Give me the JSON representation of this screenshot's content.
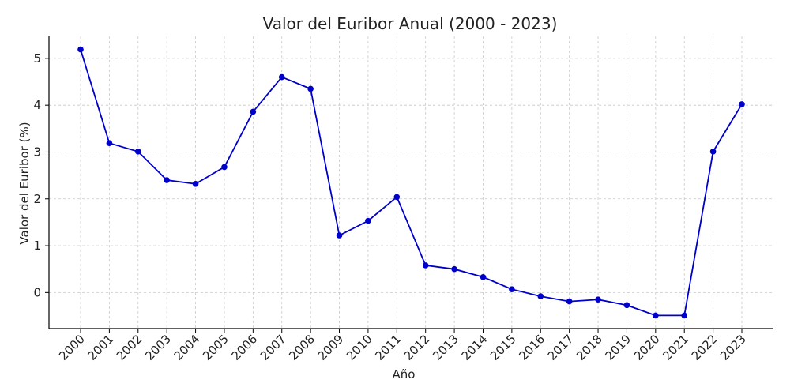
{
  "chart_data": {
    "type": "line",
    "title": "Valor del Euribor Anual (2000 - 2023)",
    "xlabel": "Año",
    "ylabel": "Valor del Euribor (%)",
    "categories": [
      "2000",
      "2001",
      "2002",
      "2003",
      "2004",
      "2005",
      "2006",
      "2007",
      "2008",
      "2009",
      "2010",
      "2011",
      "2012",
      "2013",
      "2014",
      "2015",
      "2016",
      "2017",
      "2018",
      "2019",
      "2020",
      "2021",
      "2022",
      "2023"
    ],
    "series": [
      {
        "values": [
          5.19,
          3.19,
          3.01,
          2.4,
          2.32,
          2.68,
          3.86,
          4.6,
          4.35,
          1.22,
          1.53,
          2.04,
          0.58,
          0.5,
          0.33,
          0.07,
          -0.08,
          -0.19,
          -0.15,
          -0.27,
          -0.49,
          -0.49,
          3.01,
          4.02
        ],
        "color": "#0000cc"
      }
    ],
    "ylim": [
      -0.77,
      5.47
    ],
    "yticks": [
      0,
      1,
      2,
      3,
      4,
      5
    ],
    "xtick_rotation": -45,
    "grid": true,
    "legend": "none",
    "colors": {
      "line": "#0000cc",
      "marker": "#0000cc",
      "grid": "#c8c8c8",
      "axis": "#000000",
      "background": "#ffffff"
    }
  }
}
